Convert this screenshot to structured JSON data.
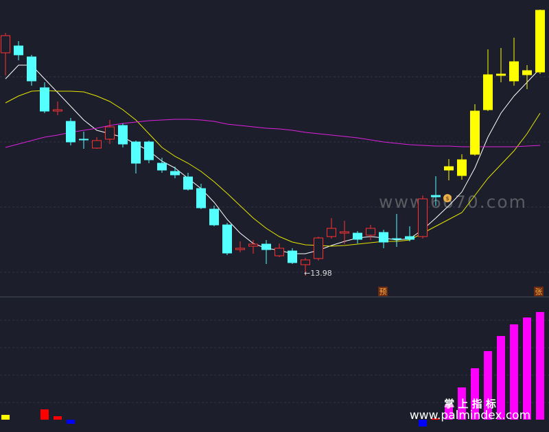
{
  "chart_data": {
    "type": "candlestick",
    "open": [
      17.23,
      17.33,
      17.17,
      16.72,
      16.38,
      16.23,
      15.97,
      15.84,
      15.97,
      16.17,
      15.93,
      15.93,
      15.62,
      15.5,
      15.42,
      15.25,
      14.95,
      14.72,
      14.36,
      14.41,
      14.44,
      14.27,
      14.34,
      14.14,
      14.23,
      14.55,
      14.6,
      14.6,
      14.57,
      14.61,
      14.52,
      14.55,
      14.55,
      15.15,
      15.52,
      15.44,
      15.75,
      16.4,
      16.9,
      16.82,
      16.91,
      16.95
    ],
    "high": [
      17.52,
      17.4,
      17.2,
      16.8,
      16.52,
      16.28,
      16.08,
      16.0,
      16.25,
      16.2,
      15.95,
      15.95,
      15.7,
      15.57,
      15.48,
      15.32,
      15.0,
      14.75,
      14.48,
      14.5,
      14.5,
      14.45,
      14.38,
      14.24,
      14.55,
      14.82,
      14.78,
      14.63,
      14.72,
      14.65,
      14.88,
      14.7,
      15.15,
      15.43,
      15.68,
      15.75,
      16.48,
      17.28,
      17.3,
      17.45,
      17.05,
      17.86
    ],
    "low": [
      16.9,
      17.12,
      16.75,
      16.35,
      16.32,
      15.88,
      15.83,
      15.83,
      15.9,
      15.85,
      15.47,
      15.62,
      15.48,
      15.4,
      15.22,
      14.95,
      14.7,
      14.28,
      14.32,
      14.3,
      14.15,
      14.25,
      14.15,
      13.98,
      14.2,
      14.52,
      14.44,
      14.45,
      14.5,
      14.38,
      14.4,
      14.48,
      14.52,
      15.0,
      15.37,
      15.38,
      15.73,
      16.38,
      16.8,
      16.75,
      16.7,
      16.92
    ],
    "close": [
      17.48,
      17.2,
      16.82,
      16.38,
      16.4,
      15.93,
      15.96,
      15.95,
      16.15,
      15.9,
      15.62,
      15.67,
      15.52,
      15.45,
      15.24,
      14.97,
      14.72,
      14.31,
      14.38,
      14.44,
      14.36,
      14.38,
      14.17,
      14.21,
      14.53,
      14.67,
      14.62,
      14.51,
      14.67,
      14.47,
      14.51,
      14.51,
      15.1,
      15.13,
      15.57,
      15.67,
      16.38,
      16.91,
      16.92,
      17.1,
      16.97,
      17.85
    ],
    "colors": [
      "#ff3232",
      "#54ffff",
      "#54ffff",
      "#54ffff",
      "#ff3232",
      "#54ffff",
      "#54ffff",
      "#ff3232",
      "#ff3232",
      "#54ffff",
      "#54ffff",
      "#54ffff",
      "#54ffff",
      "#54ffff",
      "#54ffff",
      "#54ffff",
      "#54ffff",
      "#54ffff",
      "#ff3232",
      "#ff3232",
      "#54ffff",
      "#ff3232",
      "#54ffff",
      "#ff3232",
      "#ff3232",
      "#ff3232",
      "#ff3232",
      "#54ffff",
      "#ff3232",
      "#54ffff",
      "#54ffff",
      "#54ffff",
      "#ff3232",
      "#54ffff",
      "#ffff00",
      "#ffff00",
      "#ffff00",
      "#ffff00",
      "#ffff00",
      "#ffff00",
      "#ffff00",
      "#ffff00"
    ],
    "hollow_color": "#ff3232",
    "lines": [
      {
        "color": "#ffffff",
        "values": [
          16.85,
          17.05,
          17.05,
          16.85,
          16.65,
          16.45,
          16.25,
          16.1,
          16.05,
          16.0,
          15.9,
          15.8,
          15.65,
          15.55,
          15.4,
          15.25,
          15.05,
          14.8,
          14.6,
          14.45,
          14.38,
          14.35,
          14.3,
          14.3,
          14.35,
          14.42,
          14.48,
          14.53,
          14.55,
          14.53,
          14.5,
          14.52,
          14.65,
          14.82,
          15.0,
          15.2,
          15.55,
          16.0,
          16.35,
          16.6,
          16.8,
          17.0
        ]
      },
      {
        "color": "#e6e600",
        "values": [
          16.5,
          16.6,
          16.67,
          16.68,
          16.67,
          16.67,
          16.66,
          16.6,
          16.52,
          16.4,
          16.25,
          16.05,
          15.85,
          15.72,
          15.62,
          15.5,
          15.35,
          15.18,
          15.0,
          14.82,
          14.67,
          14.55,
          14.47,
          14.43,
          14.42,
          14.41,
          14.42,
          14.44,
          14.46,
          14.48,
          14.48,
          14.5,
          14.6,
          14.7,
          14.8,
          14.9,
          15.15,
          15.4,
          15.6,
          15.8,
          16.05,
          16.35
        ]
      },
      {
        "color": "#e020e0",
        "values": [
          15.85,
          15.9,
          15.95,
          16.0,
          16.03,
          16.07,
          16.1,
          16.13,
          16.17,
          16.2,
          16.22,
          16.24,
          16.25,
          16.26,
          16.26,
          16.25,
          16.23,
          16.19,
          16.17,
          16.15,
          16.13,
          16.12,
          16.1,
          16.07,
          16.05,
          16.03,
          16.01,
          15.99,
          15.96,
          15.93,
          15.91,
          15.89,
          15.88,
          15.87,
          15.87,
          15.86,
          15.86,
          15.86,
          15.86,
          15.86,
          15.87,
          15.88
        ]
      }
    ],
    "ylim": [
      13.7,
      18.0
    ],
    "yticks": [
      14.03,
      14.98,
      15.93,
      16.88
    ],
    "grid": true,
    "low_annotation": "←13.98",
    "markers": [
      "预",
      "张"
    ],
    "watermark": "www.6670.com",
    "footer_title": "掌 上 指 标",
    "footer_url": "www.palmindex.com",
    "indicator": {
      "type": "bar",
      "values": [
        7,
        null,
        null,
        15,
        5,
        -6,
        null,
        null,
        null,
        null,
        null,
        null,
        null,
        null,
        null,
        null,
        null,
        null,
        null,
        null,
        null,
        null,
        null,
        null,
        null,
        null,
        null,
        null,
        null,
        null,
        null,
        null,
        -10,
        2,
        22,
        47,
        75,
        100,
        122,
        139,
        149,
        157
      ],
      "colors": [
        "#ffff00",
        null,
        null,
        "#ff0000",
        "#ff0000",
        "#0000ff",
        null,
        null,
        null,
        null,
        null,
        null,
        null,
        null,
        null,
        null,
        null,
        null,
        null,
        null,
        null,
        null,
        null,
        null,
        null,
        null,
        null,
        null,
        null,
        null,
        null,
        null,
        "#0000ff",
        "#ff0000",
        "#ff00ff",
        "#ff00ff",
        "#ff00ff",
        "#ff00ff",
        "#ff00ff",
        "#ff00ff",
        "#ff00ff",
        "#ff00ff"
      ],
      "ylim": [
        -18,
        179
      ],
      "yticks": [
        25,
        65,
        105,
        145
      ]
    }
  }
}
